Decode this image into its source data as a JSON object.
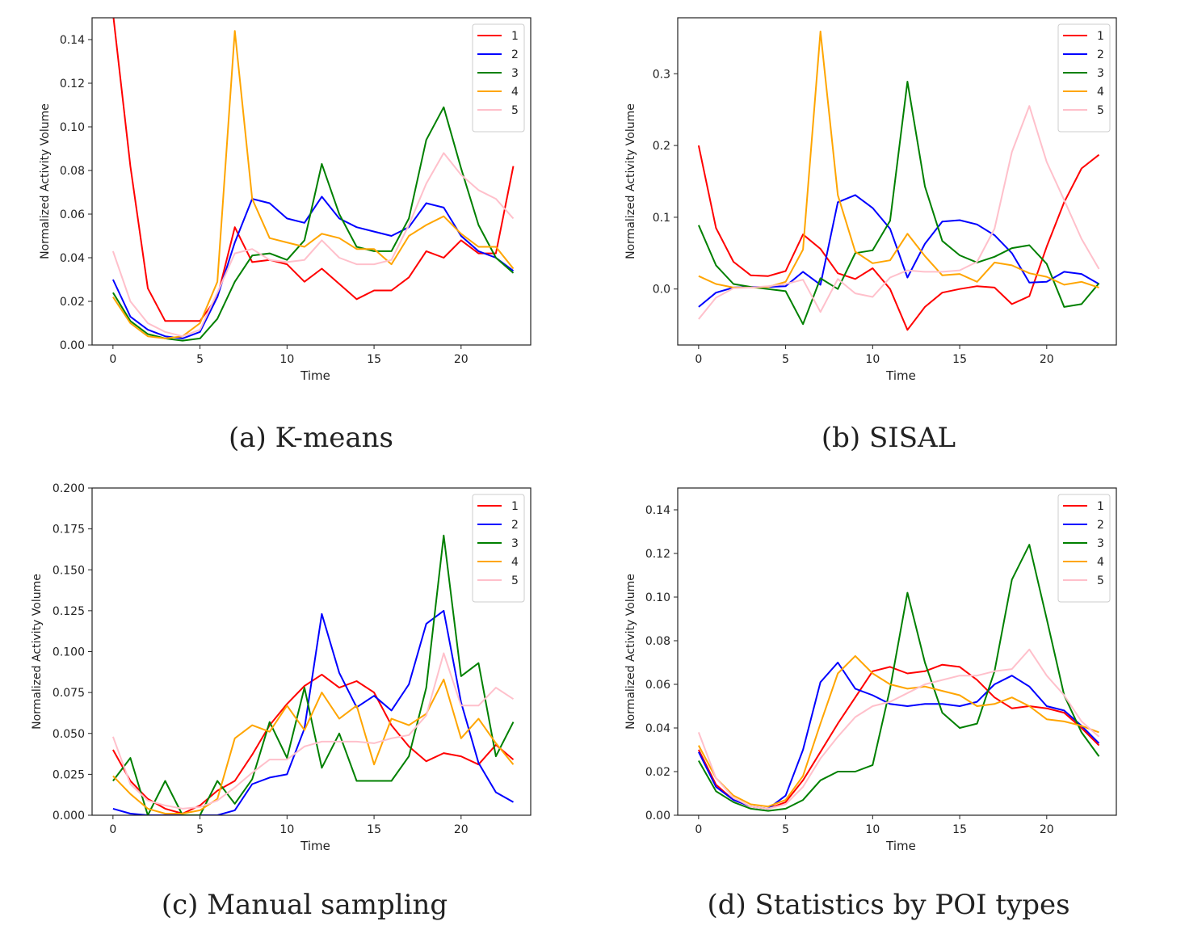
{
  "chart_data": [
    {
      "type": "line",
      "caption": "(a)  K-means",
      "xlabel": "Time",
      "ylabel": "Normalized Activity Volume",
      "xlim": [
        -1.2,
        24
      ],
      "ylim": [
        0,
        0.15
      ],
      "xticks": [
        0,
        5,
        10,
        15,
        20
      ],
      "yticks": [
        0.0,
        0.02,
        0.04,
        0.06,
        0.08,
        0.1,
        0.12,
        0.14
      ],
      "ytick_labels": [
        "0.00",
        "0.02",
        "0.04",
        "0.06",
        "0.08",
        "0.10",
        "0.12",
        "0.14"
      ],
      "legend": "top-right",
      "series": [
        {
          "name": "1",
          "color": "#ff0000",
          "values": [
            0.152,
            0.082,
            0.026,
            0.011,
            0.011,
            0.011,
            0.022,
            0.054,
            0.038,
            0.039,
            0.037,
            0.029,
            0.035,
            0.028,
            0.021,
            0.025,
            0.025,
            0.031,
            0.043,
            0.04,
            0.048,
            0.042,
            0.042,
            0.082
          ]
        },
        {
          "name": "2",
          "color": "#0000ff",
          "values": [
            0.03,
            0.013,
            0.007,
            0.004,
            0.003,
            0.006,
            0.022,
            0.047,
            0.067,
            0.065,
            0.058,
            0.056,
            0.068,
            0.058,
            0.054,
            0.052,
            0.05,
            0.054,
            0.065,
            0.063,
            0.05,
            0.043,
            0.04,
            0.034
          ]
        },
        {
          "name": "3",
          "color": "#008000",
          "values": [
            0.024,
            0.011,
            0.005,
            0.003,
            0.002,
            0.003,
            0.012,
            0.029,
            0.041,
            0.042,
            0.039,
            0.048,
            0.083,
            0.06,
            0.045,
            0.043,
            0.043,
            0.058,
            0.094,
            0.109,
            0.081,
            0.055,
            0.04,
            0.033
          ]
        },
        {
          "name": "4",
          "color": "#ffa500",
          "values": [
            0.022,
            0.01,
            0.004,
            0.003,
            0.004,
            0.01,
            0.029,
            0.144,
            0.067,
            0.049,
            0.047,
            0.045,
            0.051,
            0.049,
            0.044,
            0.044,
            0.037,
            0.05,
            0.055,
            0.059,
            0.051,
            0.045,
            0.045,
            0.035
          ]
        },
        {
          "name": "5",
          "color": "#ffc0cb",
          "values": [
            0.043,
            0.02,
            0.01,
            0.006,
            0.004,
            0.007,
            0.024,
            0.042,
            0.044,
            0.039,
            0.038,
            0.039,
            0.048,
            0.04,
            0.037,
            0.037,
            0.039,
            0.055,
            0.074,
            0.088,
            0.078,
            0.071,
            0.067,
            0.058
          ]
        }
      ]
    },
    {
      "type": "line",
      "caption": "(b)  SISAL",
      "xlabel": "Time",
      "ylabel": "Normalized Activity Volume",
      "xlim": [
        -1.2,
        24
      ],
      "ylim": [
        -0.078,
        0.378
      ],
      "xticks": [
        0,
        5,
        10,
        15,
        20
      ],
      "yticks": [
        0.0,
        0.1,
        0.2,
        0.3
      ],
      "ytick_labels": [
        "0.0",
        "0.1",
        "0.2",
        "0.3"
      ],
      "legend": "top-right",
      "series": [
        {
          "name": "1",
          "color": "#ff0000",
          "values": [
            0.2,
            0.085,
            0.038,
            0.019,
            0.018,
            0.025,
            0.076,
            0.056,
            0.022,
            0.014,
            0.029,
            0.0,
            -0.057,
            -0.025,
            -0.005,
            0.0,
            0.004,
            0.002,
            -0.021,
            -0.01,
            0.059,
            0.121,
            0.168,
            0.187
          ]
        },
        {
          "name": "2",
          "color": "#0000ff",
          "values": [
            -0.025,
            -0.005,
            0.002,
            0.003,
            0.003,
            0.004,
            0.024,
            0.006,
            0.121,
            0.131,
            0.113,
            0.084,
            0.016,
            0.063,
            0.094,
            0.096,
            0.09,
            0.075,
            0.05,
            0.009,
            0.01,
            0.024,
            0.021,
            0.007
          ]
        },
        {
          "name": "3",
          "color": "#008000",
          "values": [
            0.089,
            0.033,
            0.007,
            0.003,
            0.0,
            -0.003,
            -0.049,
            0.015,
            0.0,
            0.05,
            0.054,
            0.095,
            0.289,
            0.143,
            0.067,
            0.047,
            0.037,
            0.045,
            0.057,
            0.061,
            0.035,
            -0.025,
            -0.021,
            0.008
          ]
        },
        {
          "name": "4",
          "color": "#ffa500",
          "values": [
            0.018,
            0.007,
            0.002,
            0.002,
            0.003,
            0.01,
            0.055,
            0.359,
            0.131,
            0.052,
            0.036,
            0.04,
            0.077,
            0.046,
            0.019,
            0.021,
            0.01,
            0.037,
            0.033,
            0.022,
            0.017,
            0.006,
            0.01,
            0.002
          ]
        },
        {
          "name": "5",
          "color": "#ffc0cb",
          "values": [
            -0.042,
            -0.012,
            0.001,
            0.002,
            0.004,
            0.007,
            0.013,
            -0.032,
            0.014,
            -0.006,
            -0.011,
            0.016,
            0.026,
            0.024,
            0.024,
            0.026,
            0.038,
            0.084,
            0.191,
            0.255,
            0.177,
            0.124,
            0.07,
            0.028
          ]
        }
      ]
    },
    {
      "type": "line",
      "caption": "(c)  Manual sampling",
      "xlabel": "Time",
      "ylabel": "Normalized Activity Volume",
      "xlim": [
        -1.2,
        24
      ],
      "ylim": [
        0,
        0.2
      ],
      "xticks": [
        0,
        5,
        10,
        15,
        20
      ],
      "yticks": [
        0.0,
        0.025,
        0.05,
        0.075,
        0.1,
        0.125,
        0.15,
        0.175,
        0.2
      ],
      "ytick_labels": [
        "0.000",
        "0.025",
        "0.050",
        "0.075",
        "0.100",
        "0.125",
        "0.150",
        "0.175",
        "0.200"
      ],
      "legend": "top-right",
      "series": [
        {
          "name": "1",
          "color": "#ff0000",
          "values": [
            0.04,
            0.021,
            0.01,
            0.004,
            0.001,
            0.006,
            0.015,
            0.021,
            0.037,
            0.055,
            0.068,
            0.079,
            0.086,
            0.078,
            0.082,
            0.075,
            0.055,
            0.042,
            0.033,
            0.038,
            0.036,
            0.031,
            0.043,
            0.034
          ]
        },
        {
          "name": "2",
          "color": "#0000ff",
          "values": [
            0.004,
            0.001,
            0.0,
            0.0,
            0.0,
            0.0,
            0.0,
            0.003,
            0.019,
            0.023,
            0.025,
            0.053,
            0.123,
            0.087,
            0.066,
            0.073,
            0.064,
            0.08,
            0.117,
            0.125,
            0.069,
            0.032,
            0.014,
            0.008
          ]
        },
        {
          "name": "3",
          "color": "#008000",
          "values": [
            0.021,
            0.035,
            0.0,
            0.021,
            0.0,
            0.0,
            0.021,
            0.007,
            0.022,
            0.057,
            0.035,
            0.078,
            0.029,
            0.05,
            0.021,
            0.021,
            0.021,
            0.036,
            0.078,
            0.171,
            0.085,
            0.093,
            0.036,
            0.057
          ]
        },
        {
          "name": "4",
          "color": "#ffa500",
          "values": [
            0.024,
            0.013,
            0.004,
            0.001,
            0.001,
            0.003,
            0.01,
            0.047,
            0.055,
            0.051,
            0.067,
            0.052,
            0.075,
            0.059,
            0.067,
            0.031,
            0.059,
            0.055,
            0.062,
            0.083,
            0.047,
            0.059,
            0.044,
            0.031
          ]
        },
        {
          "name": "5",
          "color": "#ffc0cb",
          "values": [
            0.048,
            0.019,
            0.009,
            0.006,
            0.004,
            0.005,
            0.009,
            0.017,
            0.026,
            0.034,
            0.034,
            0.042,
            0.045,
            0.045,
            0.045,
            0.044,
            0.047,
            0.049,
            0.061,
            0.099,
            0.067,
            0.067,
            0.078,
            0.071
          ]
        }
      ]
    },
    {
      "type": "line",
      "caption": "(d)  Statistics by POI types",
      "xlabel": "Time",
      "ylabel": "Normalized Activity Volume",
      "xlim": [
        -1.2,
        24
      ],
      "ylim": [
        0,
        0.15
      ],
      "xticks": [
        0,
        5,
        10,
        15,
        20
      ],
      "yticks": [
        0.0,
        0.02,
        0.04,
        0.06,
        0.08,
        0.1,
        0.12,
        0.14
      ],
      "ytick_labels": [
        "0.00",
        "0.02",
        "0.04",
        "0.06",
        "0.08",
        "0.10",
        "0.12",
        "0.14"
      ],
      "legend": "top-right",
      "series": [
        {
          "name": "1",
          "color": "#ff0000",
          "values": [
            0.03,
            0.014,
            0.007,
            0.004,
            0.003,
            0.006,
            0.016,
            0.029,
            0.042,
            0.054,
            0.066,
            0.068,
            0.065,
            0.066,
            0.069,
            0.068,
            0.062,
            0.054,
            0.049,
            0.05,
            0.049,
            0.047,
            0.04,
            0.032
          ]
        },
        {
          "name": "2",
          "color": "#0000ff",
          "values": [
            0.029,
            0.013,
            0.007,
            0.004,
            0.003,
            0.009,
            0.03,
            0.061,
            0.07,
            0.058,
            0.055,
            0.051,
            0.05,
            0.051,
            0.051,
            0.05,
            0.052,
            0.06,
            0.064,
            0.059,
            0.05,
            0.048,
            0.041,
            0.033
          ]
        },
        {
          "name": "3",
          "color": "#008000",
          "values": [
            0.025,
            0.011,
            0.006,
            0.003,
            0.002,
            0.003,
            0.007,
            0.016,
            0.02,
            0.02,
            0.023,
            0.058,
            0.102,
            0.07,
            0.047,
            0.04,
            0.042,
            0.066,
            0.108,
            0.124,
            0.09,
            0.055,
            0.038,
            0.027
          ]
        },
        {
          "name": "4",
          "color": "#ffa500",
          "values": [
            0.032,
            0.017,
            0.009,
            0.005,
            0.004,
            0.007,
            0.018,
            0.042,
            0.065,
            0.073,
            0.065,
            0.06,
            0.058,
            0.059,
            0.057,
            0.055,
            0.05,
            0.051,
            0.054,
            0.05,
            0.044,
            0.043,
            0.041,
            0.038
          ]
        },
        {
          "name": "5",
          "color": "#ffc0cb",
          "values": [
            0.038,
            0.017,
            0.008,
            0.004,
            0.003,
            0.005,
            0.013,
            0.026,
            0.036,
            0.045,
            0.05,
            0.052,
            0.056,
            0.06,
            0.062,
            0.064,
            0.064,
            0.066,
            0.067,
            0.076,
            0.064,
            0.055,
            0.043,
            0.036
          ]
        }
      ]
    }
  ]
}
